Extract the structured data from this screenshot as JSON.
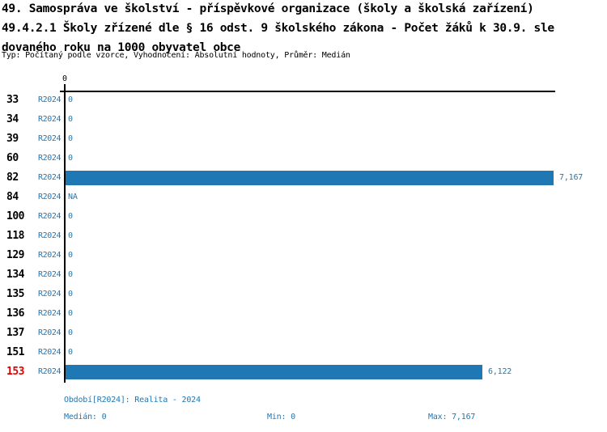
{
  "header": {
    "line1": "49. Samospráva ve školství - příspěvkové organizace (školy a školská zařízení)",
    "line2": "49.4.2.1 Školy zřízené dle § 16 odst. 9 školského zákona - Počet žáků k 30.9. sle",
    "line3": "dovaného roku na 1000 obyvatel obce",
    "meta": "Typ: Počítaný podle vzorce, Vyhodnocení: Absolutní hodnoty, Průměr: Medián"
  },
  "chart_data": {
    "type": "bar",
    "orientation": "horizontal",
    "title": "49.4.2.1 Školy zřízené dle § 16 odst. 9 školského zákona - Počet žáků k 30.9. sledovaného roku na 1000 obyvatel obce",
    "period_label": "R2024",
    "categories": [
      "33",
      "34",
      "39",
      "60",
      "82",
      "84",
      "100",
      "118",
      "129",
      "134",
      "135",
      "136",
      "137",
      "151",
      "153"
    ],
    "values": [
      0,
      0,
      0,
      0,
      7.167,
      null,
      0,
      0,
      0,
      0,
      0,
      0,
      0,
      0,
      6.122
    ],
    "value_labels": [
      "0",
      "0",
      "0",
      "0",
      "7,167",
      "NA",
      "0",
      "0",
      "0",
      "0",
      "0",
      "0",
      "0",
      "0",
      "6,122"
    ],
    "axis_tick_zero": "0",
    "xlim": [
      0,
      7.167
    ],
    "grid": false,
    "legend": false,
    "highlighted_category": "153",
    "bar_color": "#1f77b4",
    "text_color": "#1f77b4",
    "highlight_color": "#e10000"
  },
  "footer": {
    "period_line": "Období[R2024]: Realita - 2024",
    "median": "Medián: 0",
    "min": "Min: 0",
    "max": "Max: 7,167"
  }
}
